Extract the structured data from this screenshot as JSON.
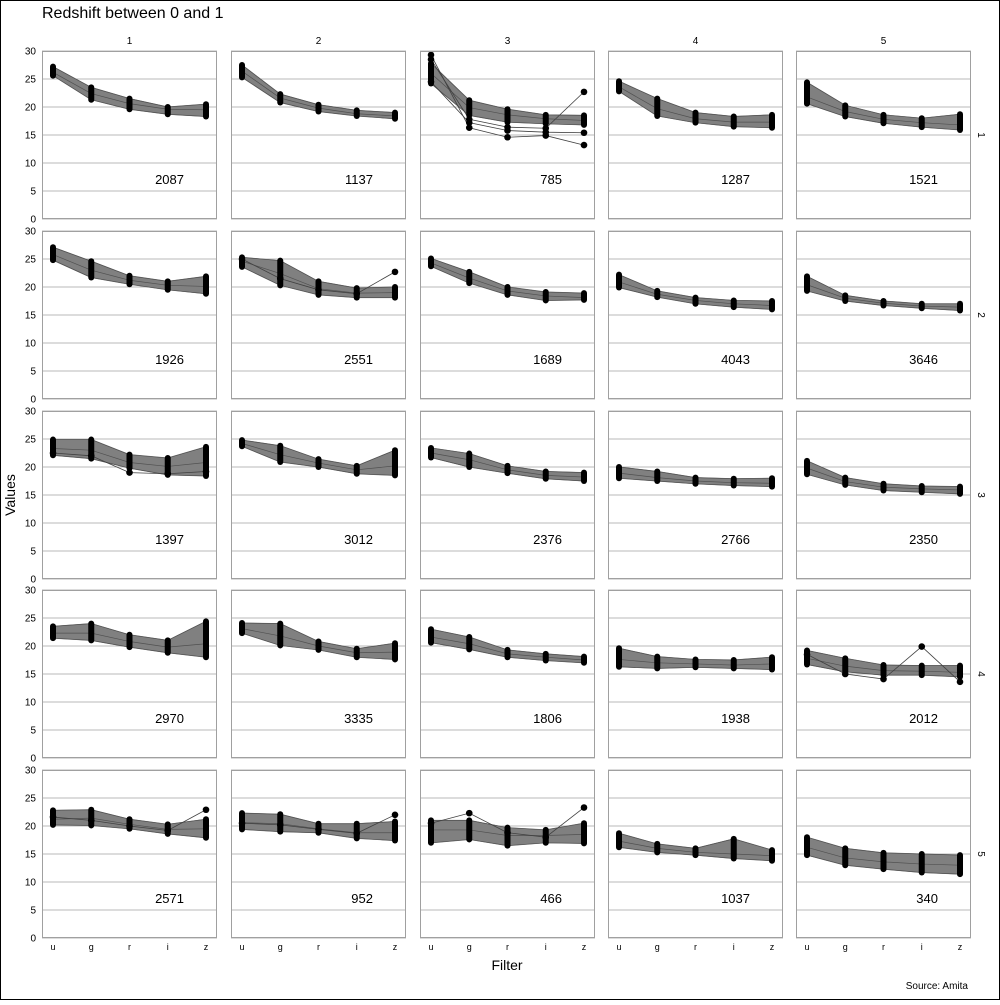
{
  "chart_data": {
    "type": "line",
    "title": "Redshift between 0 and 1",
    "xlabel": "Filter",
    "ylabel": "Values",
    "source": "Source: Amita",
    "categories": [
      "u",
      "g",
      "r",
      "i",
      "z"
    ],
    "column_labels": [
      "1",
      "2",
      "3",
      "4",
      "5"
    ],
    "row_labels": [
      "1",
      "2",
      "3",
      "4",
      "5"
    ],
    "ylim": [
      0,
      30
    ],
    "yticks": [
      0,
      5,
      10,
      15,
      20,
      25,
      30
    ],
    "grid": true,
    "colors": {
      "band": "#808080",
      "line": "#505050",
      "point": "#000000",
      "frame": "#a0a0a0",
      "grid": "#a0a0a0"
    },
    "panels": [
      [
        {
          "count": "2087",
          "low": [
            25.6,
            21.3,
            19.6,
            18.7,
            18.3
          ],
          "mean": [
            26.2,
            22.4,
            20.6,
            19.6,
            19.5
          ],
          "high": [
            27.2,
            23.5,
            21.5,
            20.0,
            20.5
          ],
          "outliers": []
        },
        {
          "count": "1137",
          "low": [
            25.3,
            20.8,
            19.2,
            18.4,
            17.9
          ],
          "mean": [
            26.4,
            21.6,
            19.8,
            18.8,
            18.4
          ],
          "high": [
            27.5,
            22.3,
            20.4,
            19.4,
            19.0
          ],
          "outliers": []
        },
        {
          "count": "785",
          "low": [
            24.2,
            18.5,
            17.3,
            17.0,
            16.8
          ],
          "mean": [
            26.0,
            19.9,
            18.6,
            17.9,
            17.6
          ],
          "high": [
            27.8,
            21.2,
            19.6,
            18.6,
            18.5
          ],
          "outliers": [
            [
              29.3,
              16.3,
              14.6,
              14.9,
              13.2
            ],
            [
              28.5,
              17.8,
              16.4,
              16.2,
              22.7
            ],
            [
              24.5,
              17.2,
              15.8,
              15.5,
              15.4
            ]
          ]
        },
        {
          "count": "1287",
          "low": [
            22.8,
            18.4,
            17.2,
            16.5,
            16.3
          ],
          "mean": [
            23.6,
            19.7,
            17.9,
            17.3,
            17.3
          ],
          "high": [
            24.6,
            21.5,
            19.0,
            18.3,
            18.6
          ],
          "outliers": []
        },
        {
          "count": "1521",
          "low": [
            20.6,
            18.3,
            17.1,
            16.4,
            15.9
          ],
          "mean": [
            21.8,
            19.2,
            17.8,
            17.2,
            16.8
          ],
          "high": [
            24.4,
            20.3,
            18.6,
            18.0,
            18.7
          ],
          "outliers": []
        }
      ],
      [
        {
          "count": "1926",
          "low": [
            24.8,
            21.7,
            20.5,
            19.5,
            18.8
          ],
          "mean": [
            25.8,
            23.0,
            21.2,
            20.3,
            20.1
          ],
          "high": [
            27.1,
            24.6,
            22.0,
            21.0,
            21.9
          ],
          "outliers": []
        },
        {
          "count": "2551",
          "low": [
            23.6,
            20.3,
            18.6,
            18.1,
            18.1
          ],
          "mean": [
            24.6,
            22.4,
            19.7,
            18.9,
            19.0
          ],
          "high": [
            25.3,
            24.7,
            21.0,
            19.8,
            20.0
          ],
          "outliers": [
            [
              25.0,
              21.5,
              19.5,
              18.8,
              22.7
            ]
          ]
        },
        {
          "count": "1689",
          "low": [
            23.7,
            20.7,
            18.6,
            17.6,
            17.7
          ],
          "mean": [
            24.3,
            21.6,
            19.3,
            18.4,
            18.1
          ],
          "high": [
            25.1,
            22.7,
            20.0,
            19.1,
            18.9
          ],
          "outliers": []
        },
        {
          "count": "4043",
          "low": [
            19.9,
            18.2,
            17.0,
            16.4,
            16.0
          ],
          "mean": [
            20.9,
            18.7,
            17.6,
            17.0,
            16.7
          ],
          "high": [
            22.2,
            19.3,
            18.1,
            17.6,
            17.5
          ],
          "outliers": []
        },
        {
          "count": "3646",
          "low": [
            19.3,
            17.5,
            16.7,
            16.2,
            15.8
          ],
          "mean": [
            20.4,
            18.0,
            17.1,
            16.6,
            16.4
          ],
          "high": [
            21.9,
            18.5,
            17.5,
            17.0,
            17.0
          ],
          "outliers": []
        }
      ],
      [
        {
          "count": "1397",
          "low": [
            22.1,
            21.5,
            19.8,
            18.6,
            18.4
          ],
          "mean": [
            23.3,
            23.0,
            20.8,
            20.1,
            20.8
          ],
          "high": [
            24.9,
            24.9,
            22.2,
            21.6,
            23.6
          ],
          "outliers": [
            [
              22.5,
              22.0,
              19.0,
              18.8,
              19.2
            ]
          ]
        },
        {
          "count": "3012",
          "low": [
            23.7,
            20.9,
            20.0,
            18.8,
            18.5
          ],
          "mean": [
            24.2,
            22.2,
            20.7,
            19.5,
            20.2
          ],
          "high": [
            24.8,
            23.8,
            21.4,
            20.2,
            23.0
          ],
          "outliers": []
        },
        {
          "count": "2376",
          "low": [
            21.7,
            20.0,
            18.9,
            17.9,
            17.5
          ],
          "mean": [
            22.5,
            21.3,
            19.5,
            18.5,
            18.2
          ],
          "high": [
            23.4,
            22.4,
            20.2,
            19.2,
            19.0
          ],
          "outliers": []
        },
        {
          "count": "2766",
          "low": [
            18.0,
            17.5,
            17.0,
            16.7,
            16.5
          ],
          "mean": [
            18.9,
            18.1,
            17.5,
            17.2,
            17.1
          ],
          "high": [
            20.0,
            19.2,
            18.1,
            17.9,
            18.0
          ],
          "outliers": []
        },
        {
          "count": "2350",
          "low": [
            18.7,
            16.8,
            15.8,
            15.5,
            15.2
          ],
          "mean": [
            19.8,
            17.4,
            16.4,
            16.1,
            15.9
          ],
          "high": [
            21.1,
            18.1,
            17.0,
            16.6,
            16.5
          ],
          "outliers": []
        }
      ],
      [
        {
          "count": "2970",
          "low": [
            21.4,
            21.0,
            19.8,
            18.8,
            18.0
          ],
          "mean": [
            22.3,
            22.3,
            20.8,
            19.8,
            20.4
          ],
          "high": [
            23.5,
            24.0,
            22.0,
            21.0,
            24.4
          ],
          "outliers": []
        },
        {
          "count": "3335",
          "low": [
            22.3,
            20.1,
            19.3,
            18.0,
            17.6
          ],
          "mean": [
            23.1,
            21.8,
            20.0,
            18.8,
            18.9
          ],
          "high": [
            24.1,
            24.0,
            20.8,
            19.5,
            20.5
          ],
          "outliers": []
        },
        {
          "count": "1806",
          "low": [
            20.6,
            19.4,
            18.0,
            17.4,
            17.0
          ],
          "mean": [
            21.6,
            20.4,
            18.6,
            18.0,
            17.5
          ],
          "high": [
            23.0,
            21.6,
            19.3,
            18.6,
            18.1
          ],
          "outliers": []
        },
        {
          "count": "1938",
          "low": [
            16.3,
            16.0,
            16.2,
            16.0,
            15.8
          ],
          "mean": [
            17.6,
            17.0,
            16.8,
            16.6,
            16.8
          ],
          "high": [
            19.6,
            18.1,
            17.6,
            17.5,
            18.0
          ],
          "outliers": []
        },
        {
          "count": "2012",
          "low": [
            16.7,
            15.4,
            14.8,
            14.8,
            14.5
          ],
          "mean": [
            17.8,
            16.4,
            15.6,
            15.5,
            15.3
          ],
          "high": [
            19.2,
            17.8,
            16.6,
            16.5,
            16.5
          ],
          "outliers": [
            [
              18.5,
              15.0,
              14.1,
              19.9,
              13.6
            ]
          ]
        }
      ],
      [
        {
          "count": "2571",
          "low": [
            20.2,
            20.1,
            19.5,
            18.6,
            17.9
          ],
          "mean": [
            21.2,
            21.4,
            20.3,
            19.4,
            19.5
          ],
          "high": [
            22.8,
            22.9,
            21.2,
            20.3,
            21.2
          ],
          "outliers": [
            [
              21.6,
              21.0,
              20.0,
              19.2,
              22.9
            ]
          ]
        },
        {
          "count": "952",
          "low": [
            19.4,
            19.0,
            18.8,
            17.8,
            17.4
          ],
          "mean": [
            20.6,
            20.4,
            19.5,
            18.8,
            18.8
          ],
          "high": [
            22.3,
            22.1,
            20.4,
            20.4,
            20.8
          ],
          "outliers": [
            [
              20.5,
              20.2,
              19.4,
              18.7,
              22.0
            ]
          ]
        },
        {
          "count": "466",
          "low": [
            17.0,
            17.6,
            16.5,
            17.0,
            16.9
          ],
          "mean": [
            19.3,
            19.3,
            18.3,
            18.3,
            18.5
          ],
          "high": [
            21.0,
            21.0,
            19.7,
            19.3,
            20.5
          ],
          "outliers": [
            [
              20.5,
              22.3,
              18.8,
              18.0,
              23.3
            ]
          ]
        },
        {
          "count": "1037",
          "low": [
            16.2,
            15.3,
            14.8,
            14.2,
            13.8
          ],
          "mean": [
            17.3,
            16.0,
            15.3,
            15.0,
            14.7
          ],
          "high": [
            18.7,
            16.8,
            16.0,
            17.7,
            15.7
          ],
          "outliers": []
        },
        {
          "count": "340",
          "low": [
            14.8,
            13.0,
            12.3,
            11.7,
            11.4
          ],
          "mean": [
            16.2,
            14.3,
            13.6,
            13.2,
            13.0
          ],
          "high": [
            18.0,
            16.0,
            15.2,
            15.0,
            14.8
          ],
          "outliers": []
        }
      ]
    ]
  }
}
